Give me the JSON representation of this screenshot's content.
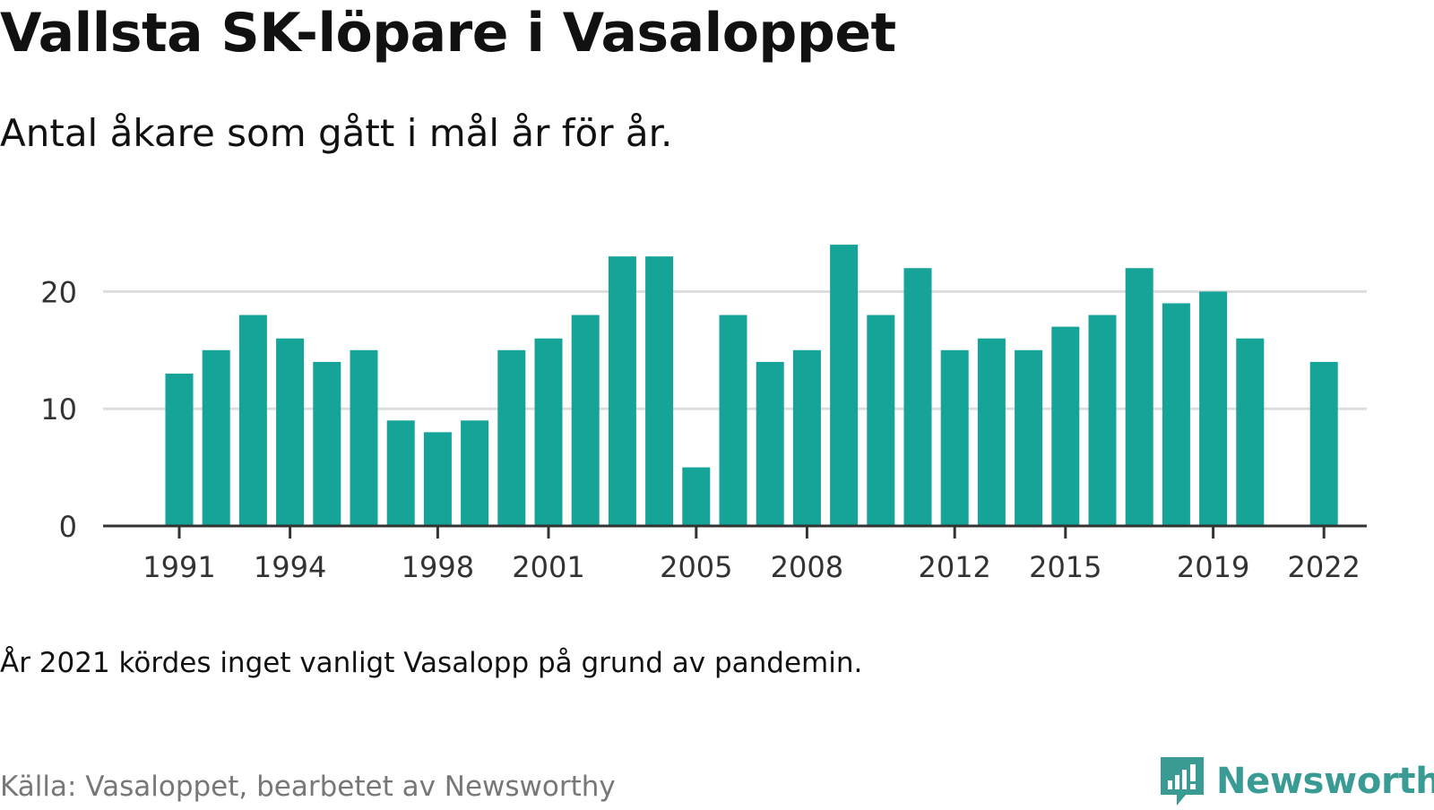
{
  "title": "Vallsta SK-löpare i Vasaloppet",
  "subtitle": "Antal åkare som gått i mål år för år.",
  "note": "År 2021 kördes inget vanligt Vasalopp på grund av pandemin.",
  "source": "Källa: Vasaloppet, bearbetet av Newsworthy",
  "brand": {
    "name": "Newsworthy",
    "color": "#3a9b94",
    "icon": "newsworthy-logo-icon"
  },
  "colors": {
    "bar": "#16a398",
    "grid": "#dddddd",
    "axis": "#333333"
  },
  "chart_data": {
    "type": "bar",
    "title": "Vallsta SK-löpare i Vasaloppet",
    "subtitle": "Antal åkare som gått i mål år för år.",
    "xlabel": "",
    "ylabel": "",
    "categories": [
      1991,
      1992,
      1993,
      1994,
      1995,
      1996,
      1997,
      1998,
      1999,
      2000,
      2001,
      2002,
      2003,
      2004,
      2005,
      2006,
      2007,
      2008,
      2009,
      2010,
      2011,
      2012,
      2013,
      2014,
      2015,
      2016,
      2017,
      2018,
      2019,
      2020,
      2021,
      2022
    ],
    "values": [
      13,
      15,
      18,
      16,
      14,
      15,
      9,
      8,
      9,
      15,
      16,
      18,
      23,
      23,
      5,
      18,
      14,
      15,
      24,
      18,
      22,
      15,
      16,
      15,
      17,
      18,
      22,
      19,
      20,
      16,
      null,
      14
    ],
    "x_ticks": [
      1991,
      1994,
      1998,
      2001,
      2005,
      2008,
      2012,
      2015,
      2019,
      2022
    ],
    "y_ticks": [
      0,
      10,
      20
    ],
    "ylim": [
      0,
      25
    ],
    "grid": true,
    "legend": "none"
  }
}
